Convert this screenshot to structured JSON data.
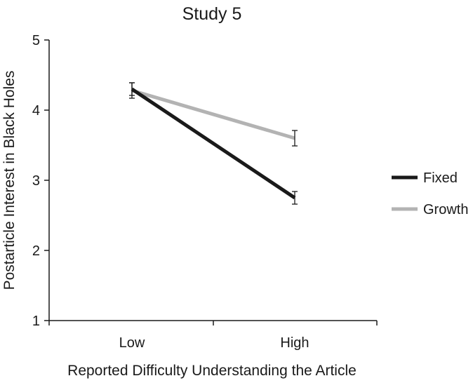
{
  "chart_data": {
    "type": "line",
    "title": "Study 5",
    "xlabel": "Reported Difficulty Understanding the Article",
    "ylabel": "Postarticle Interest in Black Holes",
    "categories": [
      "Low",
      "High"
    ],
    "ylim": [
      1,
      5
    ],
    "yticks": [
      "1",
      "2",
      "3",
      "4",
      "5"
    ],
    "grid": false,
    "legend_position": "right",
    "series": [
      {
        "name": "Fixed",
        "values": [
          4.3,
          2.75
        ],
        "error": [
          0.09,
          0.09
        ],
        "color": "#1a1a1a"
      },
      {
        "name": "Growth",
        "values": [
          4.28,
          3.6
        ],
        "error": [
          0.11,
          0.11
        ],
        "color": "#b3b3b3"
      }
    ]
  }
}
